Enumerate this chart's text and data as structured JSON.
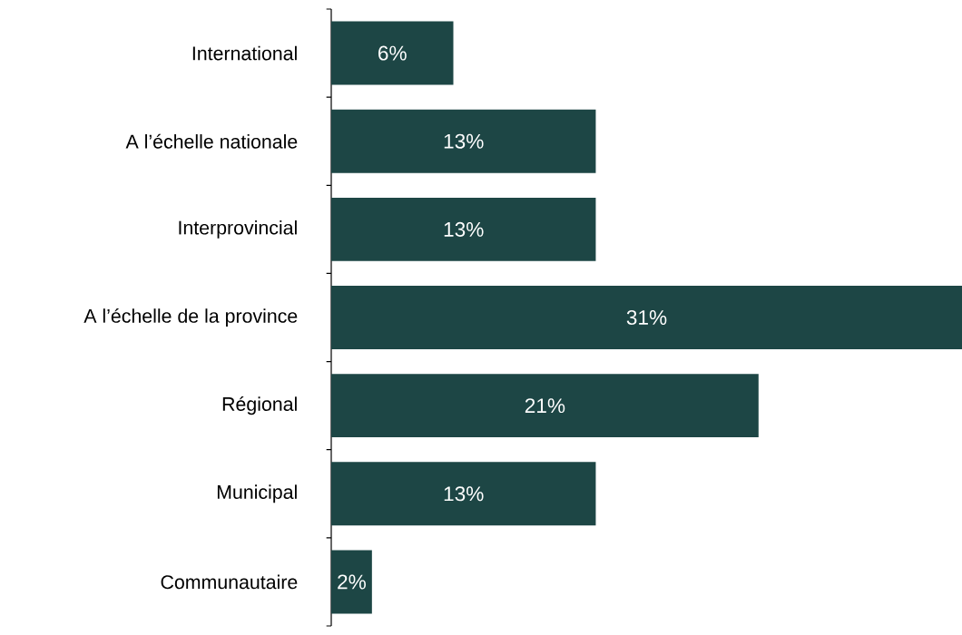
{
  "chart_data": {
    "type": "bar",
    "orientation": "horizontal",
    "categories": [
      "International",
      "A l’échelle nationale",
      "Interprovincial",
      "A l’échelle de la province",
      "Régional",
      "Municipal",
      "Communautaire"
    ],
    "values": [
      6,
      13,
      13,
      31,
      21,
      13,
      2
    ],
    "value_labels": [
      "6%",
      "13%",
      "13%",
      "31%",
      "21%",
      "13%",
      "2%"
    ],
    "color": "#1d4645"
  }
}
